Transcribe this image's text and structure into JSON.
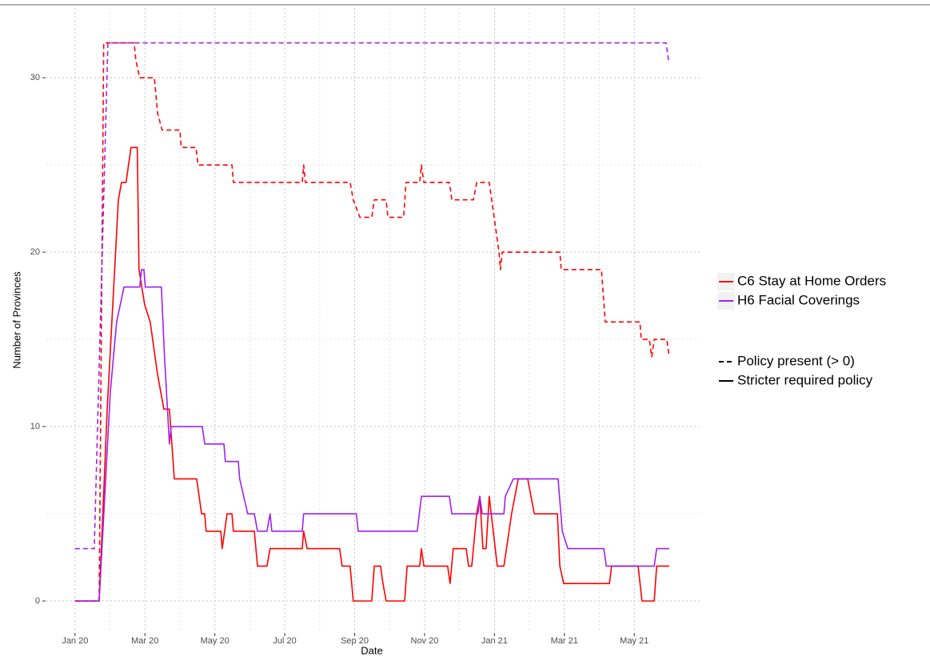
{
  "chart_data": {
    "type": "line",
    "x_label": "Date",
    "y_label": "Number of Provinces",
    "xlim": [
      -0.82,
      17.94
    ],
    "ylim": [
      -1.79,
      34.0
    ],
    "xticks": [
      {
        "value": 0,
        "label": "Jan 20"
      },
      {
        "value": 2,
        "label": "Mar 20"
      },
      {
        "value": 4,
        "label": "May 20"
      },
      {
        "value": 6,
        "label": "Jul 20"
      },
      {
        "value": 8,
        "label": "Sep 20"
      },
      {
        "value": 10,
        "label": "Nov 20"
      },
      {
        "value": 12,
        "label": "Jan 21"
      },
      {
        "value": 14,
        "label": "Mar 21"
      },
      {
        "value": 16,
        "label": "May 21"
      }
    ],
    "yticks": [
      0,
      10,
      20,
      30
    ],
    "grid": true,
    "linetype_labels": {
      "dashed": "Policy present (> 0)",
      "solid": "Stricter required policy"
    },
    "series": [
      {
        "name": "C6 Stay at Home Orders",
        "color": "#ff0000",
        "linetype": "dashed",
        "x": [
          0,
          0.69,
          0.82,
          1.69,
          1.74,
          1.85,
          2.27,
          2.36,
          2.49,
          3.0,
          3.04,
          3.46,
          3.52,
          4.49,
          4.53,
          6.5,
          6.54,
          6.59,
          7.87,
          7.96,
          8.15,
          8.49,
          8.56,
          8.9,
          8.95,
          9.4,
          9.47,
          9.86,
          9.91,
          9.98,
          10.71,
          10.78,
          11.4,
          11.49,
          11.85,
          11.99,
          12.13,
          12.17,
          12.22,
          13.87,
          13.91,
          15.06,
          15.17,
          16.16,
          16.2,
          16.43,
          16.5,
          16.57,
          16.93,
          17.0
        ],
        "values": [
          0,
          0,
          32,
          32,
          31,
          30,
          30,
          28,
          27,
          27,
          26,
          26,
          25,
          25,
          24,
          24,
          25,
          24,
          24,
          23,
          22,
          22,
          23,
          23,
          22,
          22,
          24,
          24,
          25,
          24,
          24,
          23,
          23,
          24,
          24,
          22,
          20,
          19,
          20,
          20,
          19,
          19,
          16,
          16,
          15,
          15,
          14,
          15,
          15,
          14
        ]
      },
      {
        "name": "H6 Facial Coverings",
        "color": "#a020f0",
        "linetype": "dashed",
        "x": [
          0,
          0.55,
          0.94,
          16.91,
          16.98
        ],
        "values": [
          3,
          3,
          32,
          32,
          31
        ]
      },
      {
        "name": "C6 Stay at Home Orders",
        "color": "#ff0000",
        "linetype": "solid",
        "x": [
          0,
          0.69,
          0.92,
          1.24,
          1.33,
          1.46,
          1.6,
          1.78,
          1.83,
          1.99,
          2.15,
          2.36,
          2.54,
          2.7,
          2.84,
          3.48,
          3.62,
          3.71,
          3.75,
          4.17,
          4.21,
          4.35,
          4.49,
          4.53,
          5.13,
          5.22,
          5.49,
          5.58,
          6.5,
          6.54,
          6.64,
          7.57,
          7.64,
          7.87,
          7.96,
          8.49,
          8.56,
          8.74,
          8.81,
          8.9,
          9.43,
          9.5,
          9.86,
          9.91,
          9.98,
          10.66,
          10.73,
          10.82,
          11.19,
          11.26,
          11.35,
          11.49,
          11.58,
          11.67,
          11.76,
          11.85,
          12.08,
          12.27,
          12.49,
          12.68,
          12.95,
          13.14,
          13.8,
          13.87,
          13.98,
          15.29,
          15.35,
          16.11,
          16.22,
          16.57,
          16.64,
          17.0
        ],
        "values": [
          0,
          0,
          11,
          23,
          24,
          24,
          26,
          26,
          19,
          17,
          16,
          13,
          11,
          11,
          7,
          7,
          5,
          5,
          4,
          4,
          3,
          5,
          5,
          4,
          4,
          2,
          2,
          3,
          3,
          4,
          3,
          3,
          2,
          2,
          0,
          0,
          2,
          2,
          1,
          0,
          0,
          2,
          2,
          3,
          2,
          2,
          1,
          3,
          3,
          2,
          2,
          5,
          6,
          3,
          3,
          6,
          2,
          2,
          5,
          7,
          7,
          5,
          5,
          2,
          1,
          1,
          2,
          2,
          0,
          0,
          2,
          2
        ]
      },
      {
        "name": "H6 Facial Coverings",
        "color": "#a020f0",
        "linetype": "solid",
        "x": [
          0,
          0.69,
          1.01,
          1.19,
          1.4,
          1.85,
          1.9,
          1.97,
          2.01,
          2.47,
          2.56,
          2.7,
          2.75,
          3.64,
          3.71,
          4.26,
          4.3,
          4.67,
          4.71,
          4.94,
          5.13,
          5.22,
          5.49,
          5.58,
          5.63,
          6.5,
          6.54,
          8.05,
          8.1,
          9.79,
          9.91,
          10.71,
          10.78,
          11.53,
          11.58,
          11.65,
          12.27,
          12.31,
          12.54,
          13.82,
          13.94,
          14.1,
          15.13,
          15.2,
          16.57,
          16.64,
          17.0
        ],
        "values": [
          0,
          0,
          12,
          16,
          18,
          18,
          19,
          19,
          18,
          18,
          14,
          9,
          10,
          10,
          9,
          9,
          8,
          8,
          7,
          5,
          5,
          4,
          4,
          5,
          4,
          4,
          5,
          5,
          4,
          4,
          6,
          6,
          5,
          5,
          6,
          5,
          5,
          6,
          7,
          7,
          4,
          3,
          3,
          2,
          2,
          3,
          3
        ]
      }
    ]
  }
}
